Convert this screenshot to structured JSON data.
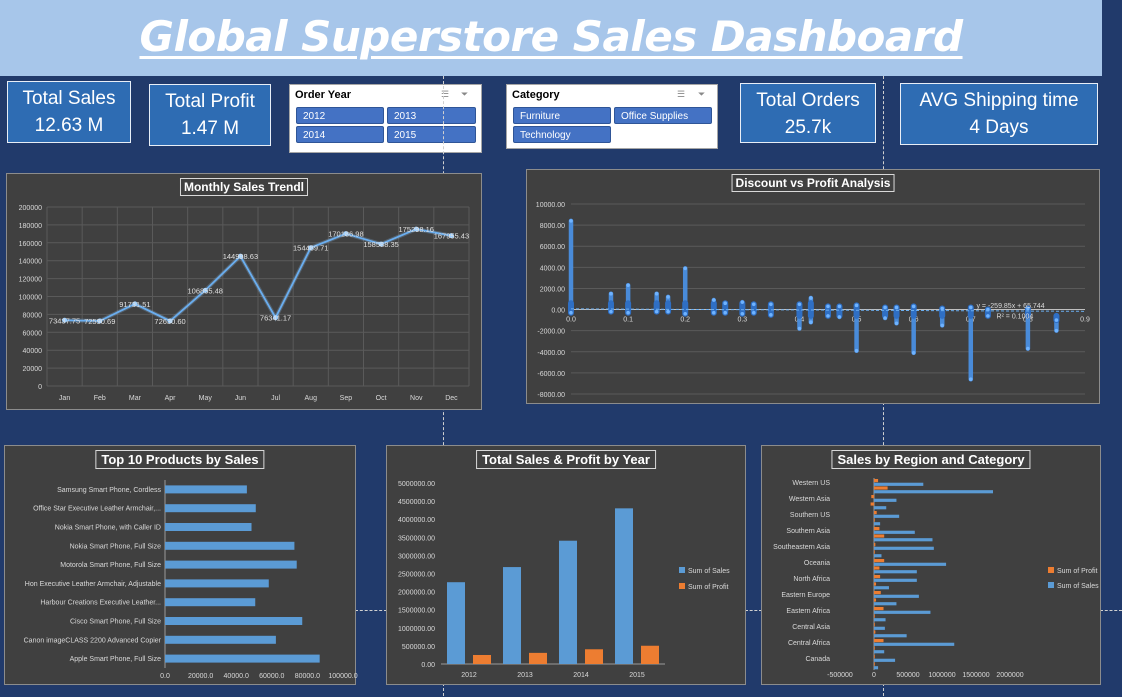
{
  "title": "Global Superstore Sales Dashboard",
  "kpis": {
    "total_sales": {
      "label": "Total Sales",
      "value": "12.63 M"
    },
    "total_profit": {
      "label": "Total Profit",
      "value": "1.47 M"
    },
    "total_orders": {
      "label": "Total Orders",
      "value": "25.7k"
    },
    "avg_shipping": {
      "label": "AVG Shipping time",
      "value": "4 Days"
    }
  },
  "slicers": {
    "order_year": {
      "header": "Order Year",
      "items": [
        "2012",
        "2013",
        "2014",
        "2015"
      ]
    },
    "category": {
      "header": "Category",
      "items": [
        "Furniture",
        "Office Supplies",
        "Technology"
      ]
    }
  },
  "colors": {
    "sales": "#5b9bd5",
    "profit": "#ed7d31",
    "panel": "#404040",
    "background": "#213a6b"
  },
  "chart_data": [
    {
      "id": "monthly",
      "type": "line",
      "title": "Monthly Sales Trendl",
      "categories": [
        "Jan",
        "Feb",
        "Mar",
        "Apr",
        "May",
        "Jun",
        "Jul",
        "Aug",
        "Sep",
        "Oct",
        "Nov",
        "Dec"
      ],
      "values": [
        73437.75,
        72590.69,
        91731.51,
        72630.6,
        106855.48,
        144998.63,
        76341.17,
        154489.71,
        170186.98,
        158588.35,
        175298.16,
        167955.43
      ],
      "data_labels": [
        "73437.75",
        "72590.69",
        "91731.51",
        "72630.60",
        "106855.48",
        "144998.63",
        "76341.17",
        "154489.71",
        "170186.98",
        "158588.35",
        "175298.16",
        "167955.43"
      ],
      "yticks": [
        "0",
        "20000",
        "40000",
        "60000",
        "80000",
        "100000",
        "120000",
        "140000",
        "160000",
        "180000",
        "200000"
      ],
      "ylim": [
        0,
        200000
      ]
    },
    {
      "id": "discount",
      "type": "scatter",
      "title": "Discount vs Profit Analysis",
      "xlim": [
        0,
        0.9
      ],
      "ylim": [
        -8000,
        10000
      ],
      "xticks": [
        "0.0",
        "0.1",
        "0.2",
        "0.3",
        "0.4",
        "0.5",
        "0.6",
        "0.7",
        "0.8",
        "0.9"
      ],
      "yticks": [
        "-8000.00",
        "-6000.00",
        "-4000.00",
        "-2000.00",
        "0.00",
        "2000.00",
        "4000.00",
        "6000.00",
        "8000.00",
        "10000.00"
      ],
      "trendline": {
        "equation": "y = -259.85x + 65.744",
        "r2": "R² = 0.1004",
        "slope": -259.85,
        "intercept": 65.744
      },
      "clusters": [
        {
          "x": 0.0,
          "min": -300,
          "max": 8400
        },
        {
          "x": 0.07,
          "min": -200,
          "max": 1500
        },
        {
          "x": 0.1,
          "min": -300,
          "max": 2300
        },
        {
          "x": 0.15,
          "min": -200,
          "max": 1500
        },
        {
          "x": 0.17,
          "min": -200,
          "max": 1200
        },
        {
          "x": 0.2,
          "min": -400,
          "max": 3900
        },
        {
          "x": 0.25,
          "min": -300,
          "max": 900
        },
        {
          "x": 0.27,
          "min": -300,
          "max": 600
        },
        {
          "x": 0.3,
          "min": -400,
          "max": 700
        },
        {
          "x": 0.32,
          "min": -300,
          "max": 500
        },
        {
          "x": 0.35,
          "min": -500,
          "max": 500
        },
        {
          "x": 0.4,
          "min": -1800,
          "max": 500
        },
        {
          "x": 0.42,
          "min": -1200,
          "max": 1100
        },
        {
          "x": 0.45,
          "min": -600,
          "max": 300
        },
        {
          "x": 0.47,
          "min": -700,
          "max": 300
        },
        {
          "x": 0.5,
          "min": -3900,
          "max": 400
        },
        {
          "x": 0.55,
          "min": -800,
          "max": 200
        },
        {
          "x": 0.57,
          "min": -1300,
          "max": 200
        },
        {
          "x": 0.6,
          "min": -4100,
          "max": 300
        },
        {
          "x": 0.65,
          "min": -1500,
          "max": 100
        },
        {
          "x": 0.7,
          "min": -6600,
          "max": 200
        },
        {
          "x": 0.73,
          "min": -600,
          "max": 0
        },
        {
          "x": 0.8,
          "min": -3700,
          "max": 100
        },
        {
          "x": 0.85,
          "min": -2000,
          "max": -1000
        }
      ]
    },
    {
      "id": "top10",
      "type": "bar",
      "orientation": "horizontal",
      "title": "Top 10 Products by Sales",
      "categories": [
        "Apple Smart Phone, Full Size",
        "Canon imageCLASS 2200 Advanced Copier",
        "Cisco Smart Phone, Full Size",
        "Harbour Creations Executive Leather...",
        "Hon Executive Leather Armchair, Adjustable",
        "Motorola Smart Phone, Full Size",
        "Nokia Smart Phone, Full Size",
        "Nokia Smart Phone, with Caller ID",
        "Office Star Executive Leather Armchair,...",
        "Samsung Smart Phone, Cordless"
      ],
      "values": [
        86900,
        62300,
        77100,
        50700,
        58300,
        74000,
        72700,
        48600,
        51000,
        46000
      ],
      "xticks": [
        "0.0",
        "20000.0",
        "40000.0",
        "60000.0",
        "80000.0",
        "100000.0"
      ],
      "xlim": [
        0,
        100000
      ]
    },
    {
      "id": "yearly",
      "type": "bar",
      "title": "Total Sales & Profit by Year",
      "categories": [
        "2012",
        "2013",
        "2014",
        "2015"
      ],
      "series": [
        {
          "name": "Sum of Sales",
          "values": [
            2259450,
            2677440,
            3405746,
            4299866
          ]
        },
        {
          "name": "Sum of Profit",
          "values": [
            248941,
            307415,
            406935,
            504166
          ]
        }
      ],
      "yticks": [
        "0.00",
        "500000.00",
        "1000000.00",
        "1500000.00",
        "2000000.00",
        "2500000.00",
        "3000000.00",
        "3500000.00",
        "4000000.00",
        "4500000.00",
        "5000000.00"
      ],
      "ylim": [
        0,
        5000000
      ]
    },
    {
      "id": "region",
      "type": "bar",
      "orientation": "horizontal",
      "title": "Sales by Region and Category",
      "categories": [
        "Western US",
        "Western Asia",
        "Southern US",
        "Southern Asia",
        "Southeastern Asia",
        "Oceania",
        "North Africa",
        "Eastern Europe",
        "Eastern Africa",
        "Central Asia",
        "Central Africa",
        "Canada"
      ],
      "category_rows": [
        {
          "label": "Western US",
          "sales": [
            725000,
            1750000
          ],
          "profit": [
            60000,
            200000
          ]
        },
        {
          "label": "Western Asia",
          "sales": [
            330000,
            180000
          ],
          "profit": [
            -40000,
            -50000
          ]
        },
        {
          "label": "Southern US",
          "sales": [
            370000,
            90000
          ],
          "profit": [
            40000,
            10000
          ]
        },
        {
          "label": "Southern Asia",
          "sales": [
            600000,
            860000
          ],
          "profit": [
            80000,
            150000
          ]
        },
        {
          "label": "Southeastern Asia",
          "sales": [
            880000,
            110000
          ],
          "profit": [
            20000,
            10000
          ]
        },
        {
          "label": "Oceania",
          "sales": [
            1060000,
            630000
          ],
          "profit": [
            150000,
            80000
          ]
        },
        {
          "label": "North Africa",
          "sales": [
            630000,
            220000
          ],
          "profit": [
            90000,
            30000
          ]
        },
        {
          "label": "Eastern Europe",
          "sales": [
            660000,
            330000
          ],
          "profit": [
            100000,
            30000
          ]
        },
        {
          "label": "Eastern Africa",
          "sales": [
            830000,
            170000
          ],
          "profit": [
            140000,
            10000
          ]
        },
        {
          "label": "Central Asia",
          "sales": [
            160000,
            480000
          ],
          "profit": [
            5000,
            20000
          ]
        },
        {
          "label": "Central Africa",
          "sales": [
            1180000,
            150000
          ],
          "profit": [
            140000,
            10000
          ]
        },
        {
          "label": "Canada",
          "sales": [
            310000,
            60000
          ],
          "profit": [
            10000,
            5000
          ]
        }
      ],
      "series": [
        {
          "name": "Sum of Profit"
        },
        {
          "name": "Sum of Sales"
        }
      ],
      "xticks": [
        "-500000",
        "0",
        "500000",
        "1000000",
        "1500000",
        "2000000"
      ],
      "xlim": [
        -500000,
        2000000
      ]
    }
  ]
}
